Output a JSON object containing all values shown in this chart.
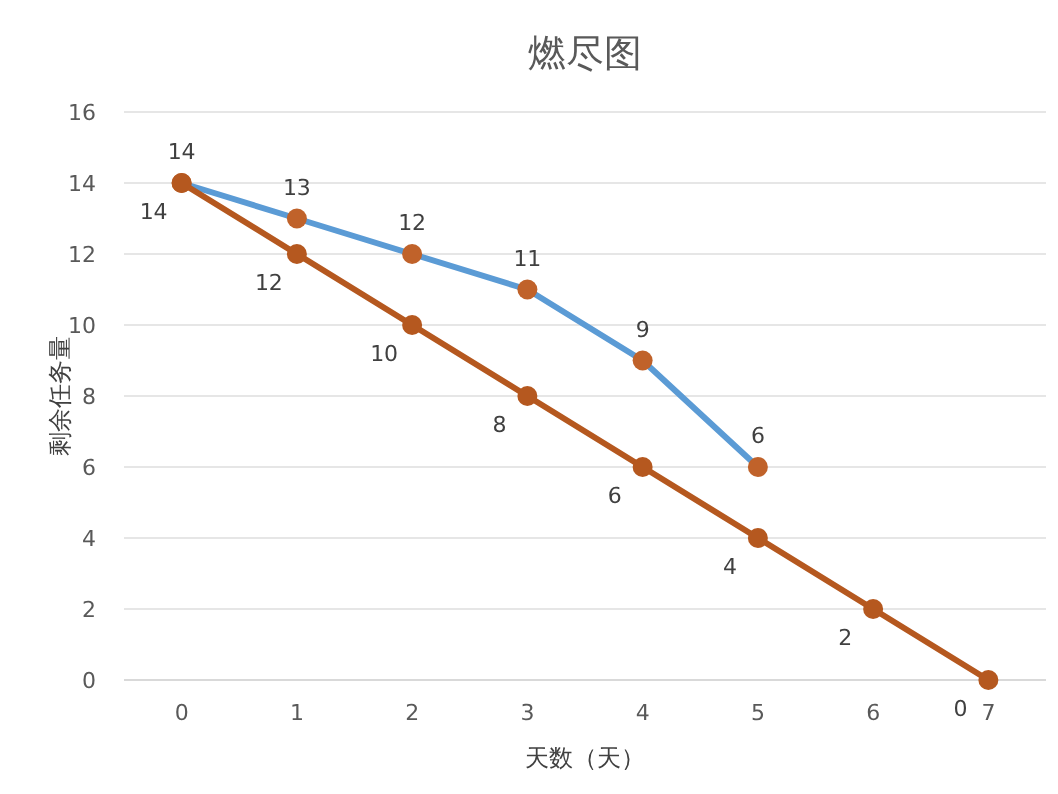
{
  "chart_data": {
    "type": "line",
    "title": "燃尽图",
    "xlabel": "天数（天）",
    "ylabel": "剩余任务量",
    "categories": [
      "0",
      "1",
      "2",
      "3",
      "4",
      "5",
      "6",
      "7"
    ],
    "series": [
      {
        "color": "#5b9bd5",
        "colors": [
          "#c0622a",
          "#c0622a",
          "#c0622a",
          "#c0622a",
          "#c0622a",
          "#c0622a",
          null,
          null
        ],
        "values": [
          14,
          13,
          12,
          11,
          9,
          6,
          null,
          null
        ]
      },
      {
        "color": "#b5581f",
        "colors": [
          "#b5581f",
          "#b5581f",
          "#b5581f",
          "#b5581f",
          "#b5581f",
          "#b5581f",
          "#b5581f",
          "#b5581f"
        ],
        "values": [
          14,
          12,
          10,
          8,
          6,
          4,
          2,
          0
        ]
      }
    ],
    "ylim": [
      0,
      16
    ],
    "yticks": [
      0,
      2,
      4,
      6,
      8,
      10,
      12,
      14,
      16
    ],
    "grid": "y",
    "marker": "circle",
    "data_labels": true
  }
}
